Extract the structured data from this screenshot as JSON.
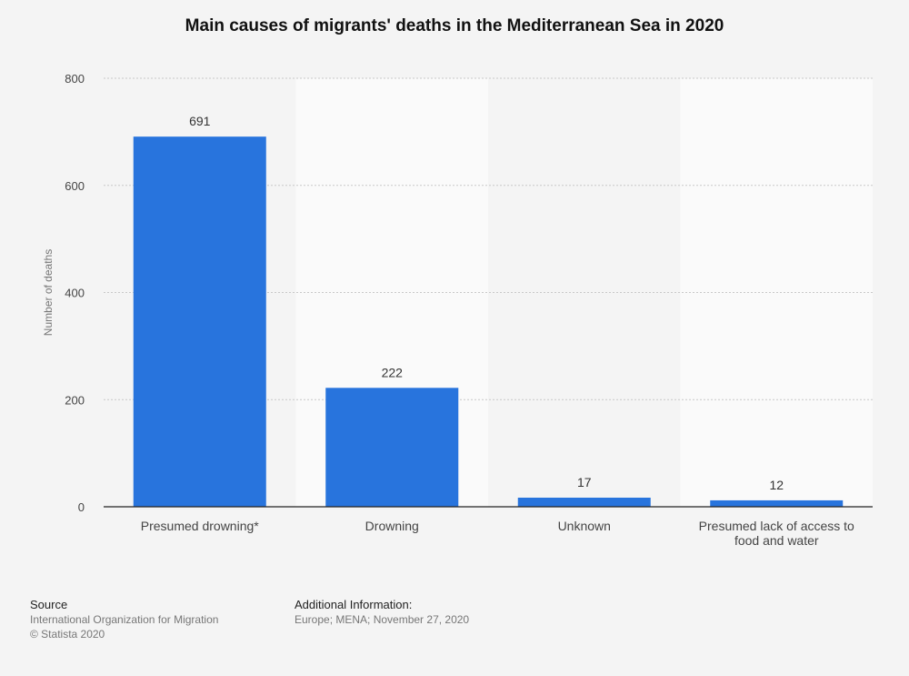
{
  "chart_data": {
    "type": "bar",
    "title": "Main causes of migrants' deaths in the Mediterranean Sea in 2020",
    "ylabel": "Number of deaths",
    "xlabel": "",
    "categories": [
      "Presumed drowning*",
      "Drowning",
      "Unknown",
      "Presumed lack of access to food and water"
    ],
    "category_lines": [
      [
        "Presumed drowning*"
      ],
      [
        "Drowning"
      ],
      [
        "Unknown"
      ],
      [
        "Presumed lack of access to",
        "food and water"
      ]
    ],
    "values": [
      691,
      222,
      17,
      12
    ],
    "ylim": [
      0,
      800
    ],
    "yticks": [
      0,
      200,
      400,
      600,
      800
    ],
    "grid": true,
    "bar_color": "#2874dd"
  },
  "footer": {
    "source_heading": "Source",
    "source_text": "International Organization for Migration",
    "copyright": "© Statista 2020",
    "info_heading": "Additional Information:",
    "info_text": "Europe; MENA; November 27, 2020"
  }
}
